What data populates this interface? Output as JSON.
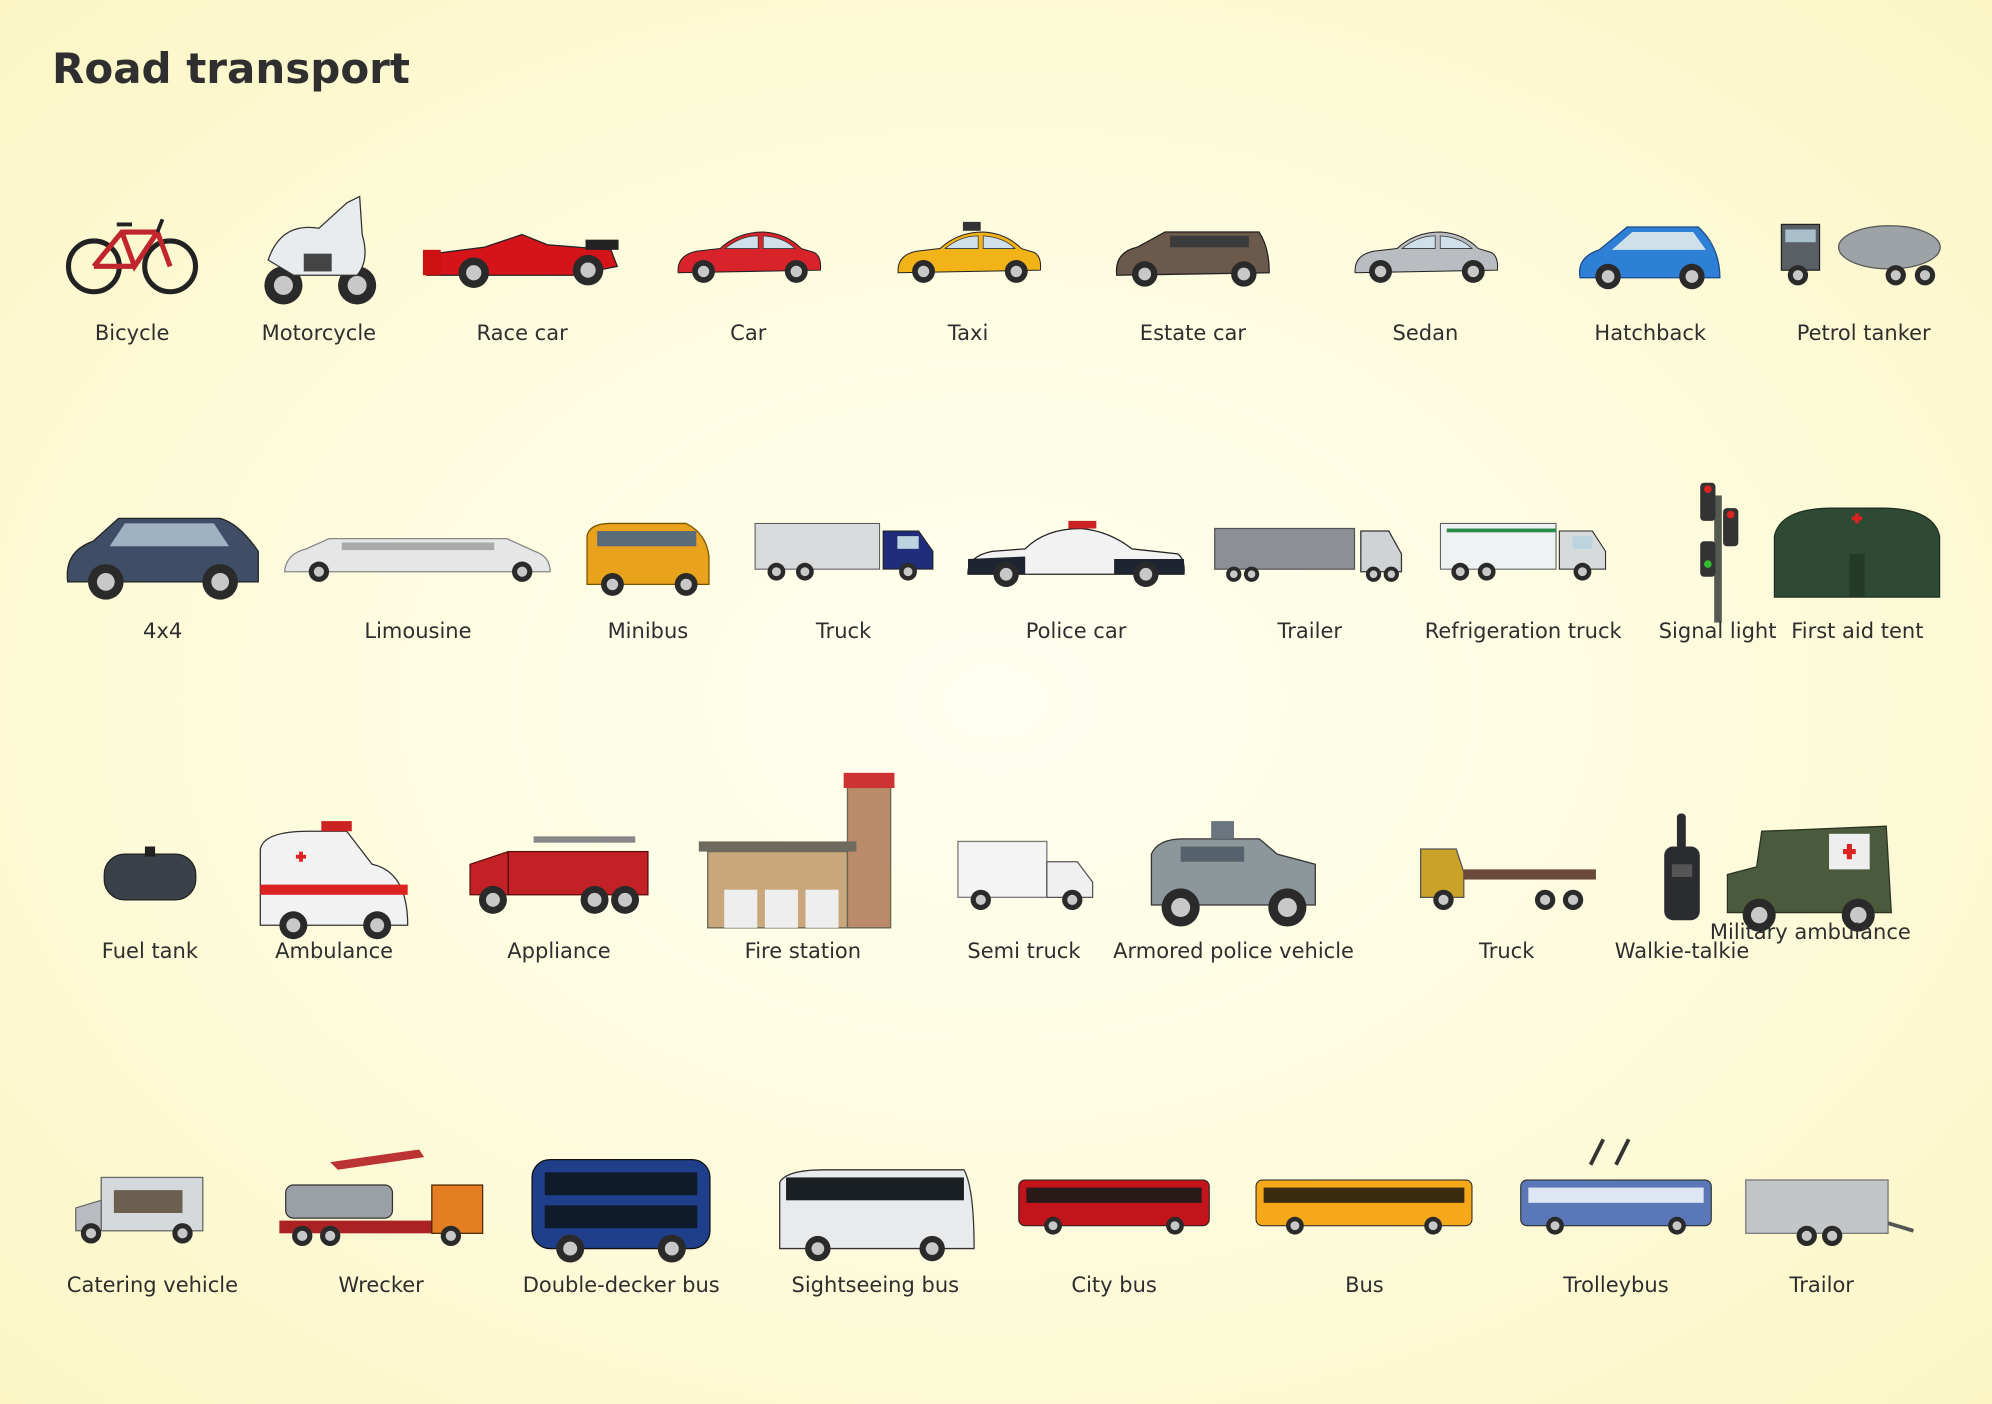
{
  "page": {
    "title": "Road transport"
  },
  "rows": [
    {
      "items": [
        {
          "label": "Bicycle",
          "icon": "bicycle-icon",
          "color": "#c0262c"
        },
        {
          "label": "Motorcycle",
          "icon": "motorcycle-icon",
          "color": "#e9ecef"
        },
        {
          "label": "Race car",
          "icon": "race-car-icon",
          "color": "#d5141a"
        },
        {
          "label": "Car",
          "icon": "car-icon",
          "color": "#d8232a"
        },
        {
          "label": "Taxi",
          "icon": "taxi-icon",
          "color": "#f2b319"
        },
        {
          "label": "Estate car",
          "icon": "estate-car-icon",
          "color": "#6b5a4c"
        },
        {
          "label": "Sedan",
          "icon": "sedan-icon",
          "color": "#b9bcc1"
        },
        {
          "label": "Hatchback",
          "icon": "hatchback-icon",
          "color": "#2e7fd6"
        },
        {
          "label": "Petrol tanker",
          "icon": "petrol-tanker-icon",
          "color": "#9ea3a8"
        }
      ]
    },
    {
      "items": [
        {
          "label": "4x4",
          "icon": "suv-icon",
          "color": "#3f4e66"
        },
        {
          "label": "Limousine",
          "icon": "limousine-icon",
          "color": "#e6e6e6"
        },
        {
          "label": "Minibus",
          "icon": "minibus-icon",
          "color": "#e8a21c"
        },
        {
          "label": "Truck",
          "icon": "truck-icon",
          "color": "#1f2d7a"
        },
        {
          "label": "Police car",
          "icon": "police-car-icon",
          "color": "#1e2430"
        },
        {
          "label": "Trailer",
          "icon": "trailer-icon",
          "color": "#8c9096"
        },
        {
          "label": "Refrigeration truck",
          "icon": "refrigeration-truck-icon",
          "color": "#eef2f2"
        },
        {
          "label": "Signal light",
          "icon": "signal-light-icon",
          "color": "#555a50"
        },
        {
          "label": "First aid tent",
          "icon": "first-aid-tent-icon",
          "color": "#2e4a34"
        }
      ]
    },
    {
      "items": [
        {
          "label": "Fuel tank",
          "icon": "fuel-tank-icon",
          "color": "#3b4148"
        },
        {
          "label": "Ambulance",
          "icon": "ambulance-icon",
          "color": "#f2f2f2"
        },
        {
          "label": "Appliance",
          "icon": "fire-engine-icon",
          "color": "#c22226"
        },
        {
          "label": "Fire station",
          "icon": "fire-station-icon",
          "color": "#c9a77a"
        },
        {
          "label": "Semi truck",
          "icon": "semi-truck-icon",
          "color": "#f4f4f4"
        },
        {
          "label": "Armored police vehicle",
          "icon": "armored-vehicle-icon",
          "color": "#8d969b"
        },
        {
          "label": "Truck",
          "icon": "flatbed-truck-icon",
          "color": "#c9a227"
        },
        {
          "label": "Walkie-talkie",
          "icon": "walkie-talkie-icon",
          "color": "#2a2c30"
        },
        {
          "label": "Military ambulance",
          "icon": "military-ambulance-icon",
          "color": "#4b5a3c"
        }
      ]
    },
    {
      "items": [
        {
          "label": "Catering vehicle",
          "icon": "catering-vehicle-icon",
          "color": "#b8bcc0"
        },
        {
          "label": "Wrecker",
          "icon": "wrecker-icon",
          "color": "#e57e22"
        },
        {
          "label": "Double-decker bus",
          "icon": "double-decker-bus-icon",
          "color": "#1f3f8a"
        },
        {
          "label": "Sightseeing bus",
          "icon": "sightseeing-bus-icon",
          "color": "#e8eaec"
        },
        {
          "label": "City bus",
          "icon": "city-bus-icon",
          "color": "#c4141b"
        },
        {
          "label": "Bus",
          "icon": "bus-icon",
          "color": "#f4a81a"
        },
        {
          "label": "Trolleybus",
          "icon": "trolleybus-icon",
          "color": "#5a78b8"
        },
        {
          "label": "Trailor",
          "icon": "trailor-icon",
          "color": "#c3c6c9"
        }
      ]
    }
  ]
}
